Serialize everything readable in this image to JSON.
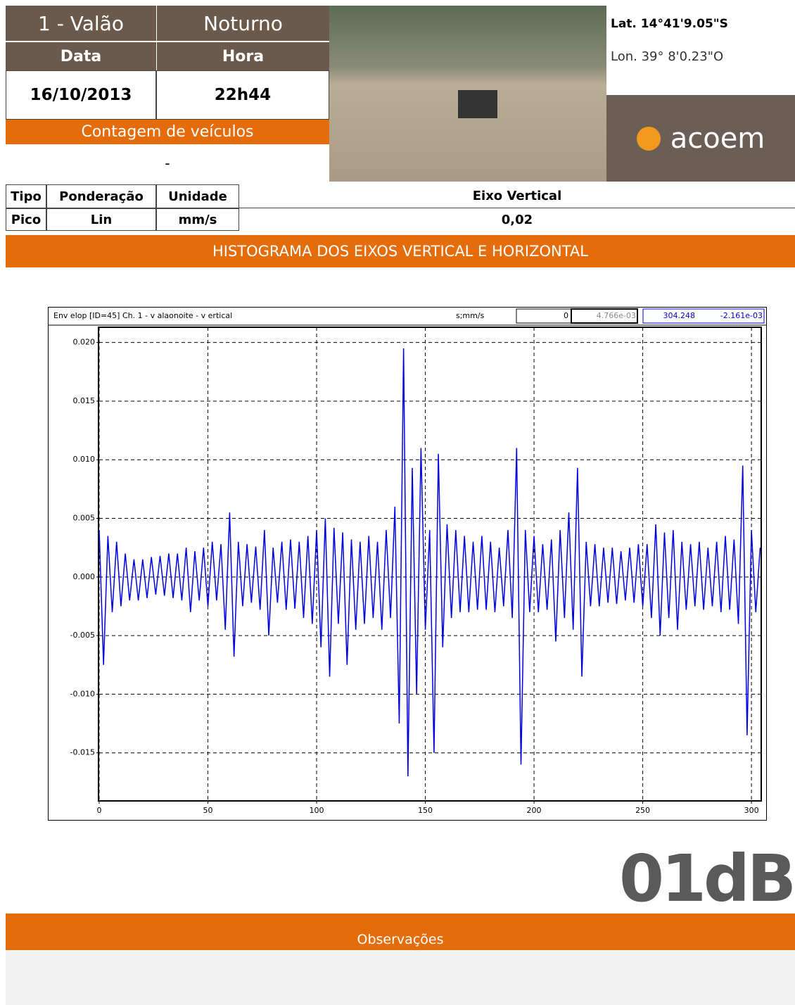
{
  "header": {
    "site": "1 - Valão",
    "period": "Noturno",
    "date_label": "Data",
    "time_label": "Hora",
    "date": "16/10/2013",
    "time": "22h44",
    "count_label": "Contagem de veículos",
    "count": "-",
    "lat": "Lat. 14°41'9.05\"S",
    "lon": "Lon.  39° 8'0.23\"O",
    "brand": "acoem"
  },
  "table": {
    "columns": [
      "Tipo",
      "Ponderação",
      "Unidade",
      "Eixo Vertical"
    ],
    "rows": [
      [
        "Pico",
        "Lin",
        "mm/s",
        "0,02"
      ]
    ]
  },
  "section_title": "HISTOGRAMA DOS EIXOS VERTICAL E HORIZONTAL",
  "chart_data": {
    "type": "line",
    "title": "Env elop [ID=45]   Ch. 1  - v alaonoite - v ertical",
    "units": "s;mm/s",
    "cursor": [
      "0",
      "4.766e-03",
      "304.248",
      "-2.161e-03"
    ],
    "x": [
      0,
      2,
      4,
      6,
      8,
      10,
      12,
      14,
      16,
      18,
      20,
      22,
      24,
      26,
      28,
      30,
      32,
      34,
      36,
      38,
      40,
      42,
      44,
      46,
      48,
      50,
      52,
      54,
      56,
      58,
      60,
      62,
      64,
      66,
      68,
      70,
      72,
      74,
      76,
      78,
      80,
      82,
      84,
      86,
      88,
      90,
      92,
      94,
      96,
      98,
      100,
      102,
      104,
      106,
      108,
      110,
      112,
      114,
      116,
      118,
      120,
      122,
      124,
      126,
      128,
      130,
      132,
      134,
      136,
      138,
      140,
      142,
      144,
      146,
      148,
      150,
      152,
      154,
      156,
      158,
      160,
      162,
      164,
      166,
      168,
      170,
      172,
      174,
      176,
      178,
      180,
      182,
      184,
      186,
      188,
      190,
      192,
      194,
      196,
      198,
      200,
      202,
      204,
      206,
      208,
      210,
      212,
      214,
      216,
      218,
      220,
      222,
      224,
      226,
      228,
      230,
      232,
      234,
      236,
      238,
      240,
      242,
      244,
      246,
      248,
      250,
      252,
      254,
      256,
      258,
      260,
      262,
      264,
      266,
      268,
      270,
      272,
      274,
      276,
      278,
      280,
      282,
      284,
      286,
      288,
      290,
      292,
      294,
      296,
      298,
      300,
      302,
      304
    ],
    "series": [
      {
        "color": "#0000dd",
        "values": [
          0.004,
          -0.0075,
          0.0035,
          -0.003,
          0.003,
          -0.0025,
          0.002,
          -0.002,
          0.0015,
          -0.002,
          0.0015,
          -0.0018,
          0.0017,
          -0.0015,
          0.0018,
          -0.0016,
          0.002,
          -0.0018,
          0.002,
          -0.002,
          0.0025,
          -0.003,
          0.0022,
          -0.002,
          0.0025,
          -0.0025,
          0.003,
          -0.002,
          0.0028,
          -0.0045,
          0.0055,
          -0.0068,
          0.003,
          -0.0025,
          0.0028,
          -0.0022,
          0.0026,
          -0.0028,
          0.004,
          -0.005,
          0.0025,
          -0.0022,
          0.003,
          -0.0028,
          0.0032,
          -0.0027,
          0.003,
          -0.0035,
          0.0035,
          -0.004,
          0.004,
          -0.006,
          0.005,
          -0.0085,
          0.0042,
          -0.004,
          0.0038,
          -0.0075,
          0.0032,
          -0.0045,
          0.003,
          -0.004,
          0.0035,
          -0.0035,
          0.003,
          -0.0045,
          0.004,
          -0.0035,
          0.006,
          -0.0125,
          0.0195,
          -0.017,
          0.0093,
          -0.01,
          0.011,
          -0.0045,
          0.004,
          -0.015,
          0.0105,
          -0.006,
          0.0045,
          -0.0035,
          0.004,
          -0.003,
          0.0035,
          -0.003,
          0.003,
          -0.0028,
          0.0035,
          -0.0028,
          0.003,
          -0.003,
          0.0025,
          -0.0025,
          0.004,
          -0.0035,
          0.011,
          -0.016,
          0.004,
          -0.003,
          0.0035,
          -0.003,
          0.0028,
          -0.0028,
          0.0032,
          -0.0055,
          0.004,
          -0.0035,
          0.0055,
          -0.0045,
          0.0093,
          -0.0085,
          0.003,
          -0.0025,
          0.0028,
          -0.0025,
          0.0025,
          -0.0022,
          0.0025,
          -0.0023,
          0.0022,
          -0.002,
          0.0025,
          -0.0022,
          0.0028,
          -0.0025,
          0.0028,
          -0.0035,
          0.0045,
          -0.005,
          0.0038,
          -0.0035,
          0.004,
          -0.0045,
          0.003,
          -0.0028,
          0.0028,
          -0.0025,
          0.003,
          -0.0028,
          0.0025,
          -0.0025,
          0.003,
          -0.003,
          0.0035,
          -0.0028,
          0.0032,
          -0.004,
          0.0095,
          -0.0135,
          0.004,
          -0.003,
          0.0025
        ]
      }
    ],
    "xlim": [
      0,
      304.5
    ],
    "ylim": [
      -0.0191,
      0.0213
    ],
    "xticks": [
      0,
      50,
      100,
      150,
      200,
      250,
      300
    ],
    "yticks": [
      {
        "value": 0.02,
        "label": "0.020"
      },
      {
        "value": 0.015,
        "label": "0.015"
      },
      {
        "value": 0.01,
        "label": "0.010"
      },
      {
        "value": 0.005,
        "label": "0.005"
      },
      {
        "value": 0,
        "label": "0.000"
      },
      {
        "value": -0.005,
        "label": "-0.005"
      },
      {
        "value": -0.01,
        "label": "-0.010"
      },
      {
        "value": -0.015,
        "label": "-0.015"
      }
    ],
    "grid": true
  },
  "footer": {
    "logo": "01dB",
    "notes_title": "Observações"
  }
}
